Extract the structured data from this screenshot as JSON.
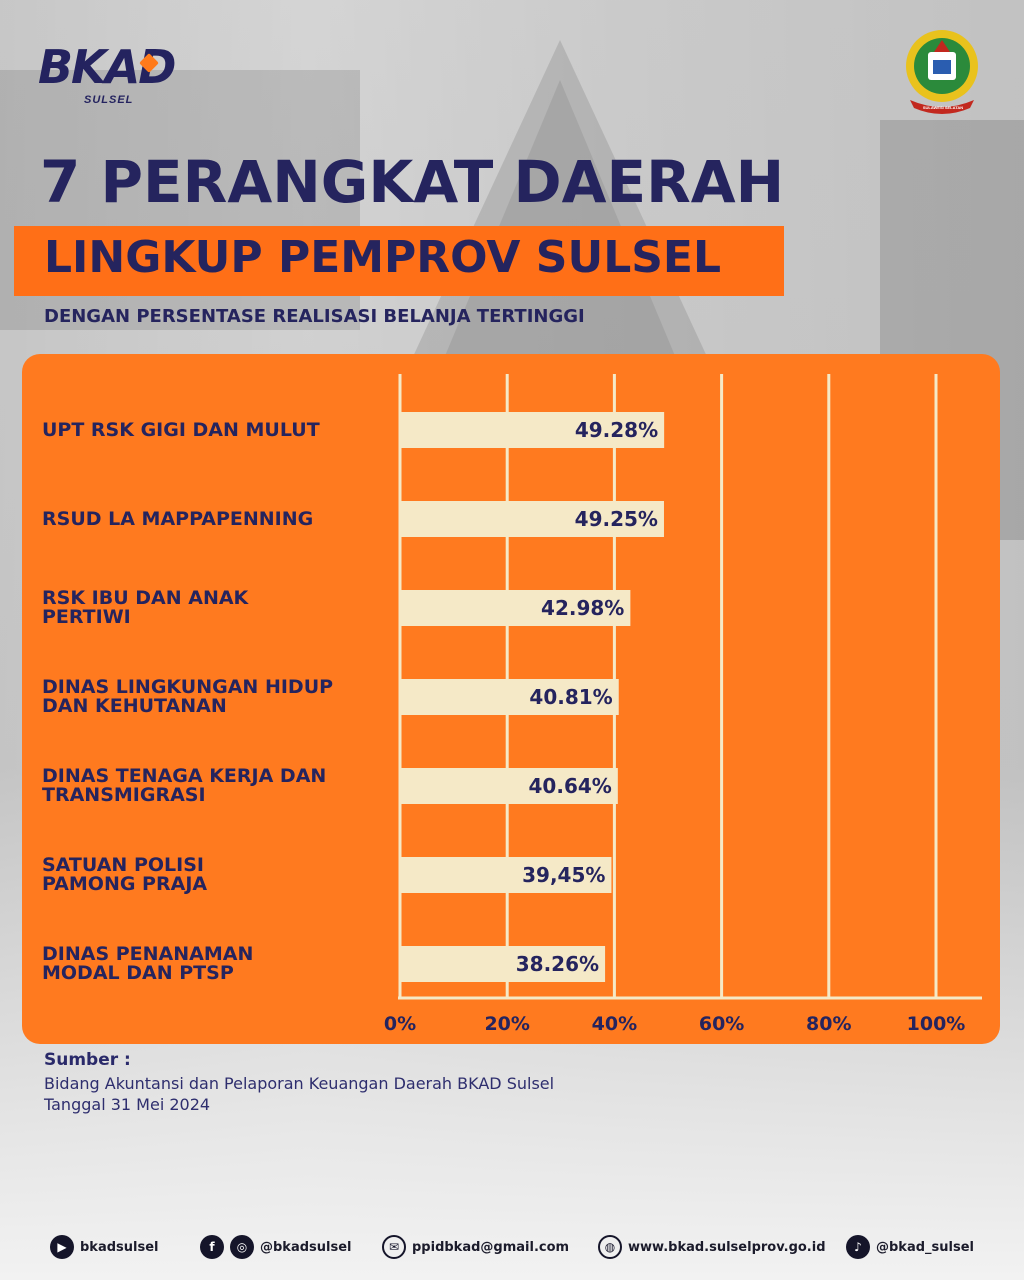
{
  "header": {
    "logo_text": "BKAD",
    "logo_sub": "SULSEL",
    "emblem_label": "SULAWESI SELATAN"
  },
  "title": {
    "line1": "7 PERANGKAT DAERAH",
    "line2": "LINGKUP PEMPROV SULSEL",
    "subtitle": "DENGAN PERSENTASE REALISASI BELANJA TERTINGGI"
  },
  "colors": {
    "navy": "#25245e",
    "orange": "#ff7a1f",
    "bar": "#f5e9c7",
    "grid": "#f5e9c7"
  },
  "chart_data": {
    "type": "bar",
    "orientation": "horizontal",
    "categories": [
      "UPT RSK GIGI DAN MULUT",
      "RSUD LA MAPPAPENNING",
      "RSK IBU DAN ANAK PERTIWI",
      "DINAS LINGKUNGAN HIDUP DAN KEHUTANAN",
      "DINAS TENAGA KERJA DAN TRANSMIGRASI",
      "SATUAN POLISI PAMONG PRAJA",
      "DINAS PENANAMAN MODAL DAN PTSP"
    ],
    "category_lines": [
      [
        "UPT RSK GIGI DAN MULUT"
      ],
      [
        "RSUD LA MAPPAPENNING"
      ],
      [
        "RSK IBU DAN ANAK",
        "PERTIWI"
      ],
      [
        "DINAS LINGKUNGAN HIDUP",
        "DAN KEHUTANAN"
      ],
      [
        "DINAS TENAGA KERJA DAN",
        "TRANSMIGRASI"
      ],
      [
        "SATUAN POLISI",
        "PAMONG PRAJA"
      ],
      [
        "DINAS PENANAMAN",
        "MODAL DAN PTSP"
      ]
    ],
    "values": [
      49.28,
      49.25,
      42.98,
      40.81,
      40.64,
      39.45,
      38.26
    ],
    "value_labels": [
      "49.28%",
      "49.25%",
      "42.98%",
      "40.81%",
      "40.64%",
      "39,45%",
      "38.26%"
    ],
    "x_ticks": [
      "0%",
      "20%",
      "40%",
      "60%",
      "80%",
      "100%"
    ],
    "xlim": [
      0,
      100
    ],
    "grid": true
  },
  "source": {
    "heading": "Sumber :",
    "line1": "Bidang Akuntansi dan Pelaporan Keuangan Daerah BKAD Sulsel",
    "line2": "Tanggal 31 Mei 2024"
  },
  "footer": {
    "youtube": {
      "icon": "youtube-icon",
      "text": "bkadsulsel"
    },
    "social": {
      "icons": [
        "facebook-icon",
        "instagram-icon"
      ],
      "text": "@bkadsulsel"
    },
    "email": {
      "icon": "mail-icon",
      "text": "ppidbkad@gmail.com"
    },
    "web": {
      "icon": "globe-icon",
      "text": "www.bkad.sulselprov.go.id"
    },
    "tiktok": {
      "icon": "tiktok-icon",
      "text": "@bkad_sulsel"
    }
  }
}
